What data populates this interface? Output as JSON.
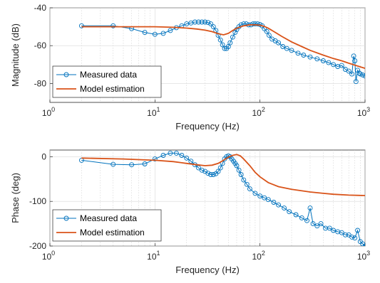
{
  "colors": {
    "measured": "#0072BD",
    "model": "#D95319"
  },
  "chart_data": [
    {
      "type": "line",
      "xscale": "log",
      "xlim": [
        1,
        1000
      ],
      "ylim": [
        -90,
        -40
      ],
      "xlabel": "Frequency (Hz)",
      "ylabel": "Magnitude (dB)",
      "x_ticks": [
        {
          "value": 1,
          "base": "10",
          "exp": "0"
        },
        {
          "value": 10,
          "base": "10",
          "exp": "1"
        },
        {
          "value": 100,
          "base": "10",
          "exp": "2"
        },
        {
          "value": 1000,
          "base": "10",
          "exp": "3"
        }
      ],
      "y_ticks": [
        {
          "value": -40,
          "label": "-40"
        },
        {
          "value": -60,
          "label": "-60"
        },
        {
          "value": -80,
          "label": "-80"
        }
      ],
      "grid": true,
      "legend": {
        "position": "bottom-left",
        "entries": [
          "Measured data",
          "Model estimation"
        ]
      },
      "series": [
        {
          "name": "Measured data",
          "marker": "circle",
          "x": [
            2,
            4,
            6,
            8,
            10,
            12,
            14,
            16,
            18,
            20,
            22,
            24,
            26,
            28,
            30,
            32,
            34,
            36,
            38,
            40,
            42,
            44,
            46,
            48,
            50,
            52,
            55,
            58,
            60,
            63,
            66,
            70,
            74,
            78,
            82,
            86,
            90,
            95,
            100,
            105,
            110,
            116,
            122,
            130,
            140,
            150,
            165,
            180,
            200,
            230,
            260,
            300,
            350,
            400,
            450,
            500,
            550,
            600,
            650,
            700,
            750,
            780,
            800,
            820,
            850,
            880,
            900,
            950,
            1000
          ],
          "y": [
            -49.5,
            -49.5,
            -51.0,
            -53.0,
            -54.0,
            -53.5,
            -52.0,
            -50.5,
            -49.5,
            -48.5,
            -48.0,
            -47.5,
            -47.5,
            -47.5,
            -47.5,
            -47.8,
            -48.5,
            -50.0,
            -52.0,
            -54.5,
            -57.0,
            -59.5,
            -61.5,
            -61.5,
            -60.5,
            -58.5,
            -55.5,
            -53.0,
            -51.5,
            -50.0,
            -49.0,
            -48.5,
            -48.5,
            -49.0,
            -49.0,
            -48.5,
            -48.5,
            -48.5,
            -48.8,
            -49.5,
            -51.0,
            -52.5,
            -54.5,
            -56.5,
            -57.5,
            -58.5,
            -60.5,
            -61.5,
            -62.5,
            -64.0,
            -65.0,
            -66.0,
            -67.0,
            -68.0,
            -69.0,
            -70.0,
            -71.0,
            -70.5,
            -72.5,
            -73.5,
            -75.0,
            -65.5,
            -68.0,
            -79.0,
            -73.0,
            -74.5,
            -75.0,
            -75.5,
            -76.0
          ]
        },
        {
          "name": "Model estimation",
          "x": [
            2,
            5,
            10,
            15,
            20,
            25,
            30,
            35,
            40,
            45,
            50,
            55,
            60,
            70,
            80,
            90,
            100,
            110,
            120,
            140,
            160,
            200,
            250,
            300,
            400,
            500,
            600,
            700,
            800,
            900,
            1000
          ],
          "y": [
            -50.0,
            -50.0,
            -50.0,
            -50.3,
            -50.7,
            -51.2,
            -51.8,
            -52.6,
            -53.7,
            -54.3,
            -53.5,
            -52.0,
            -50.8,
            -49.5,
            -49.0,
            -49.0,
            -49.2,
            -49.8,
            -50.8,
            -53.0,
            -55.0,
            -58.0,
            -60.5,
            -62.5,
            -65.0,
            -66.8,
            -68.0,
            -69.3,
            -70.3,
            -71.2,
            -72.0
          ]
        }
      ]
    },
    {
      "type": "line",
      "xscale": "log",
      "xlim": [
        1,
        1000
      ],
      "ylim": [
        -200,
        15
      ],
      "xlabel": "Frequency (Hz)",
      "ylabel": "Phase (deg)",
      "x_ticks": [
        {
          "value": 1,
          "base": "10",
          "exp": "0"
        },
        {
          "value": 10,
          "base": "10",
          "exp": "1"
        },
        {
          "value": 100,
          "base": "10",
          "exp": "2"
        },
        {
          "value": 1000,
          "base": "10",
          "exp": "3"
        }
      ],
      "y_ticks": [
        {
          "value": 0,
          "label": "0"
        },
        {
          "value": -100,
          "label": "-100"
        },
        {
          "value": -200,
          "label": "-200"
        }
      ],
      "grid": true,
      "legend": {
        "position": "bottom-left",
        "entries": [
          "Measured data",
          "Model estimation"
        ]
      },
      "series": [
        {
          "name": "Measured data",
          "marker": "circle",
          "x": [
            2,
            4,
            6,
            8,
            10,
            12,
            14,
            16,
            18,
            20,
            22,
            24,
            26,
            28,
            30,
            32,
            34,
            36,
            38,
            40,
            42,
            44,
            46,
            48,
            50,
            52,
            54,
            56,
            58,
            60,
            63,
            66,
            70,
            75,
            80,
            90,
            100,
            110,
            120,
            135,
            150,
            170,
            190,
            220,
            250,
            280,
            300,
            320,
            350,
            380,
            420,
            460,
            500,
            550,
            600,
            650,
            700,
            750,
            800,
            850,
            900,
            950,
            1000
          ],
          "y": [
            -8,
            -17,
            -18,
            -16,
            -5,
            3,
            8,
            8,
            3,
            -3,
            -10,
            -18,
            -25,
            -30,
            -33,
            -37,
            -40,
            -40,
            -38,
            -33,
            -25,
            -15,
            -5,
            0,
            2,
            0,
            -5,
            -10,
            -15,
            -20,
            -30,
            -40,
            -52,
            -62,
            -72,
            -82,
            -88,
            -92,
            -96,
            -102,
            -108,
            -115,
            -123,
            -130,
            -137,
            -143,
            -115,
            -150,
            -155,
            -150,
            -160,
            -160,
            -165,
            -168,
            -170,
            -175,
            -175,
            -180,
            -182,
            -165,
            -190,
            -195,
            -200
          ]
        },
        {
          "name": "Model estimation",
          "x": [
            2,
            5,
            10,
            15,
            20,
            25,
            30,
            35,
            40,
            45,
            50,
            55,
            60,
            65,
            70,
            80,
            90,
            100,
            120,
            150,
            200,
            300,
            400,
            500,
            700,
            1000
          ],
          "y": [
            -3,
            -5,
            -8,
            -11,
            -15,
            -18,
            -20,
            -19,
            -15,
            -8,
            -1,
            3,
            5,
            2,
            -5,
            -20,
            -35,
            -45,
            -58,
            -67,
            -73,
            -79,
            -82,
            -84,
            -86,
            -87
          ]
        }
      ]
    }
  ]
}
